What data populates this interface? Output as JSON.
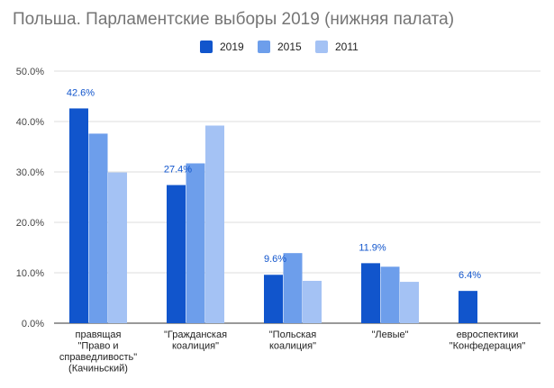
{
  "chart_data": {
    "type": "bar",
    "title": "Польша. Парламентские выборы 2019 (нижняя палата)",
    "xlabel": "",
    "ylabel": "",
    "ylim": [
      0,
      50
    ],
    "y_ticks": [
      "0.0%",
      "10.0%",
      "20.0%",
      "30.0%",
      "40.0%",
      "50.0%"
    ],
    "grid": true,
    "legend_position": "top",
    "categories": [
      [
        "правящая",
        "\"Право и",
        "справедливость\"",
        "(Качиньский)"
      ],
      [
        "\"Гражданская",
        "коалиция\""
      ],
      [
        "\"Польская",
        "коалиция\""
      ],
      [
        "\"Левые\""
      ],
      [
        "евроспектики",
        "\"Конфедерация\""
      ]
    ],
    "series": [
      {
        "name": "2019",
        "color": "#1155cc",
        "values": [
          42.6,
          27.4,
          9.6,
          11.9,
          6.4
        ],
        "data_labels": [
          "42.6%",
          "27.4%",
          "9.6%",
          "11.9%",
          "6.4%"
        ]
      },
      {
        "name": "2015",
        "color": "#6d9eeb",
        "values": [
          37.6,
          31.7,
          13.9,
          11.2,
          null
        ]
      },
      {
        "name": "2011",
        "color": "#a4c2f4",
        "values": [
          29.9,
          39.2,
          8.4,
          8.2,
          null
        ]
      }
    ],
    "label_color": "#1155cc"
  }
}
